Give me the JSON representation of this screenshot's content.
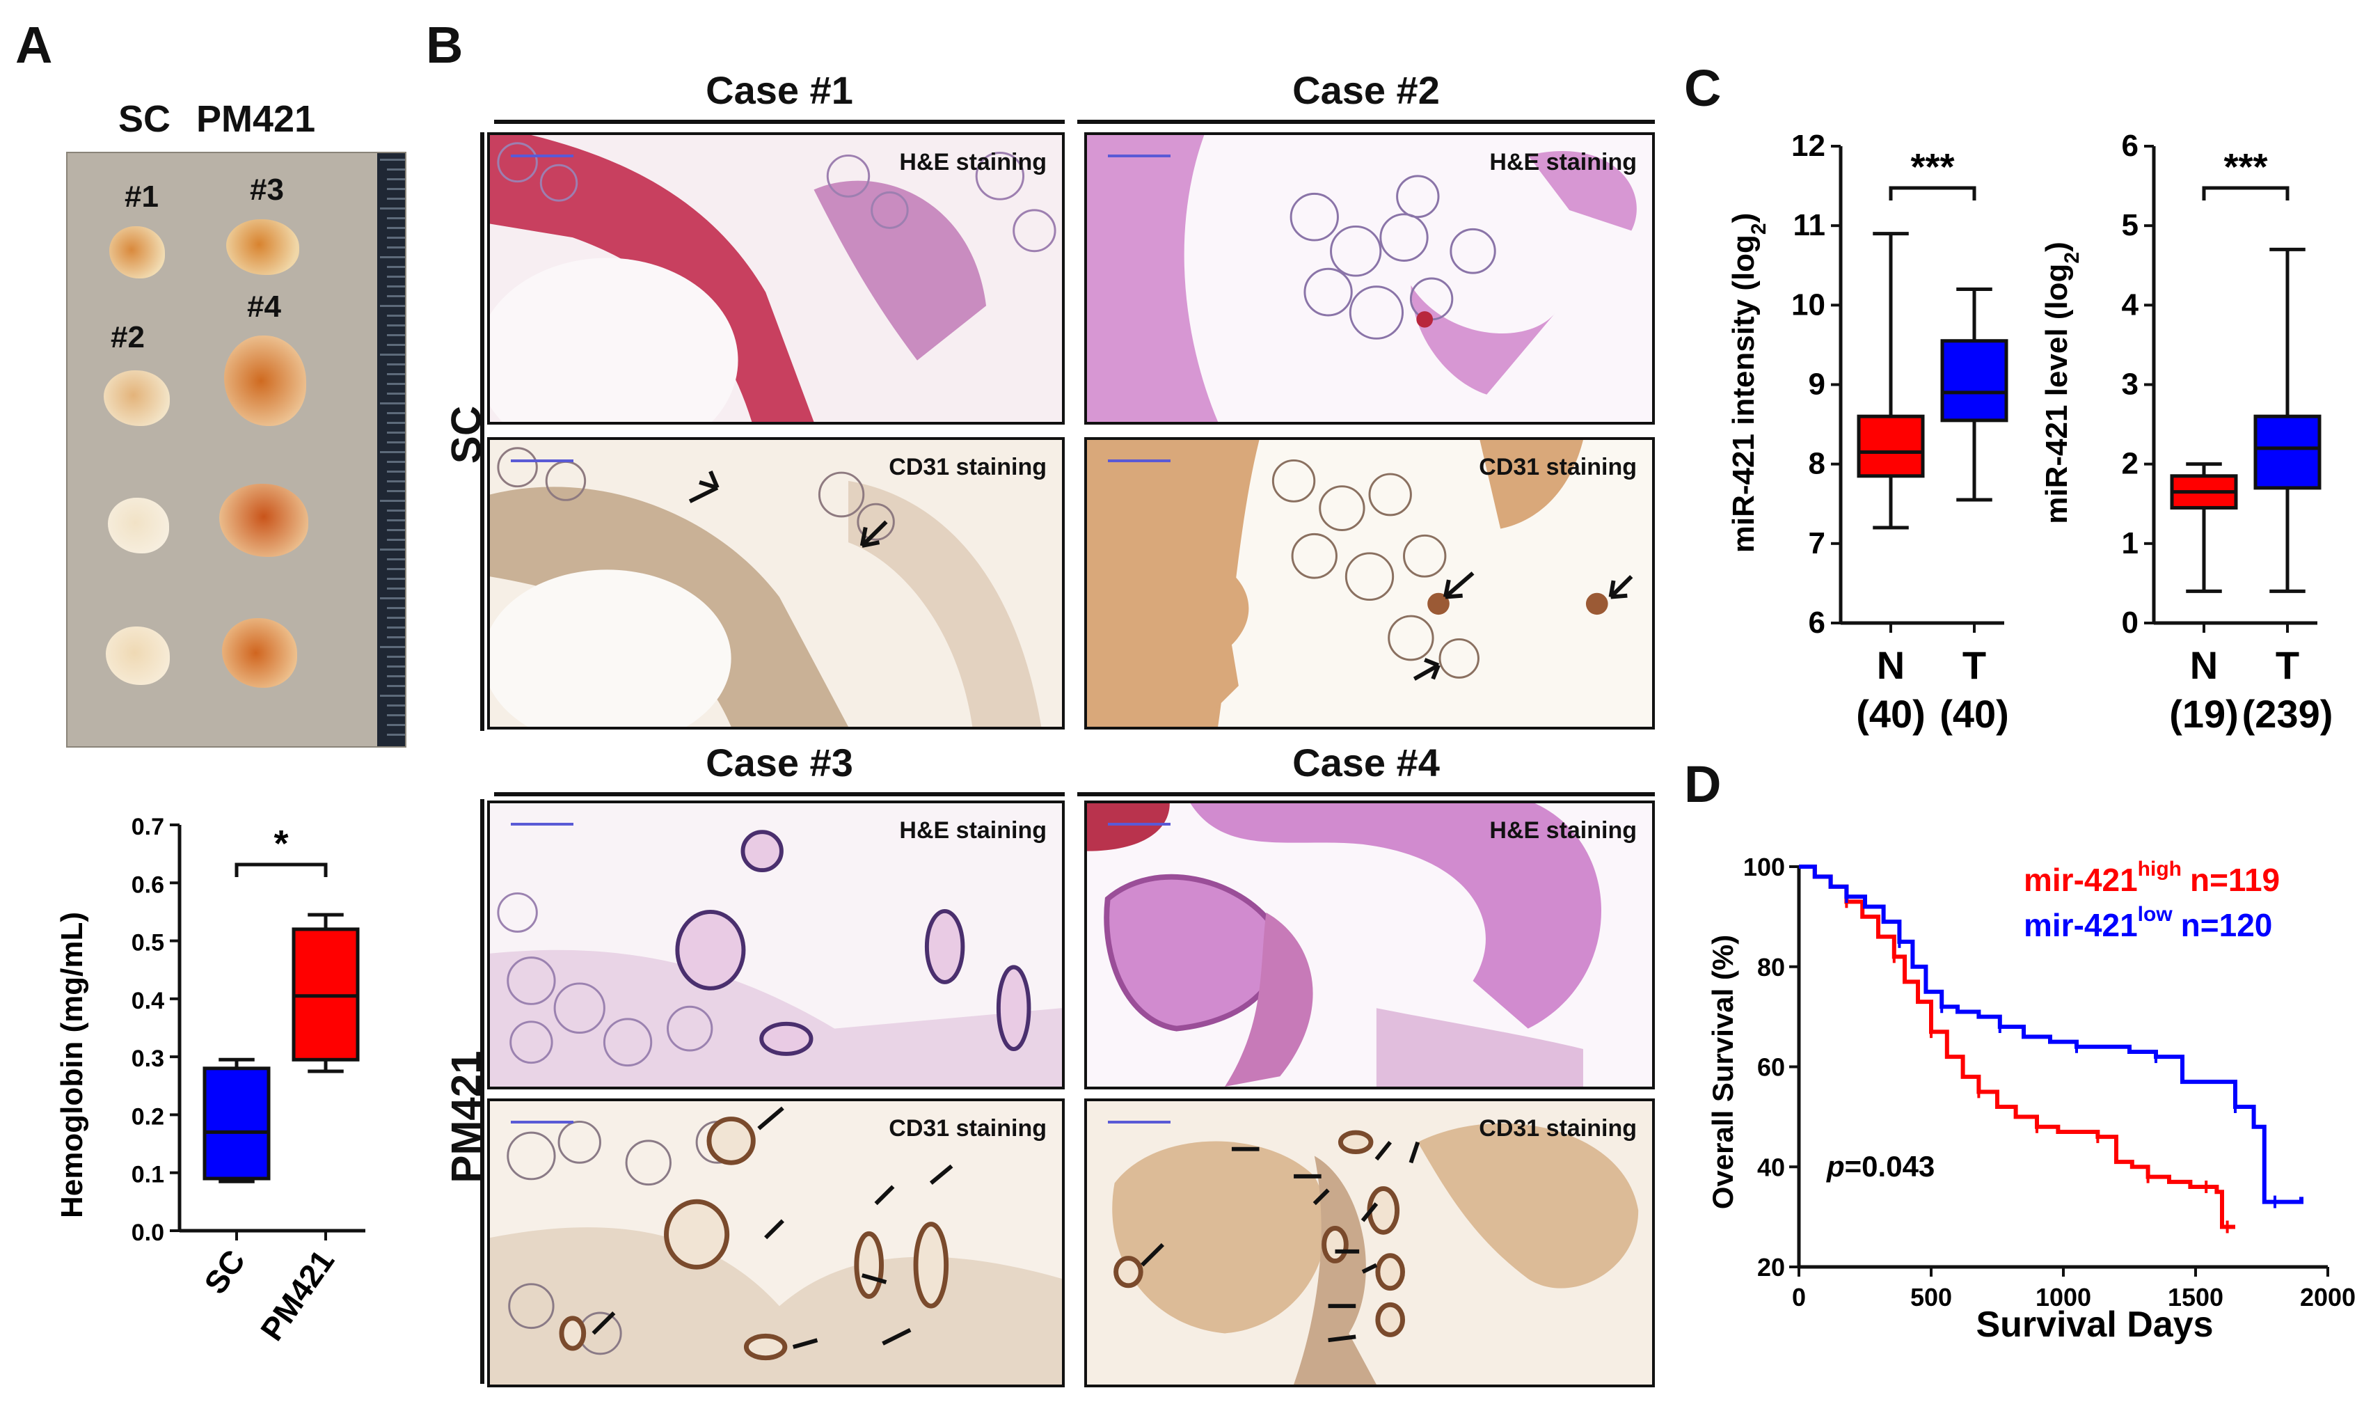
{
  "panel_letters": {
    "a": "A",
    "b": "B",
    "c": "C",
    "d": "D"
  },
  "panel_a": {
    "photo_headers": {
      "sc": "SC",
      "pm421": "PM421"
    },
    "tumor_labels": [
      "#1",
      "#3",
      "#2",
      "#4"
    ]
  },
  "panel_b": {
    "case_titles": [
      "Case #1",
      "Case #2",
      "Case #3",
      "Case #4"
    ],
    "row_labels": {
      "sc": "SC",
      "pm421": "PM421"
    },
    "stain_he": "H&E staining",
    "stain_cd31": "CD31 staining"
  },
  "chart_data": [
    {
      "panel": "A",
      "type": "box",
      "ylabel": "Hemoglobin (mg/mL)",
      "categories": [
        "SC",
        "PM421"
      ],
      "ylim": [
        0,
        0.7
      ],
      "yticks": [
        "0.0",
        "0.1",
        "0.2",
        "0.3",
        "0.4",
        "0.5",
        "0.6",
        "0.7"
      ],
      "boxes": [
        {
          "name": "SC",
          "color": "#0000ff",
          "min": 0.085,
          "q1": 0.09,
          "median": 0.17,
          "q3": 0.28,
          "max": 0.295
        },
        {
          "name": "PM421",
          "color": "#ff0000",
          "min": 0.275,
          "q1": 0.295,
          "median": 0.405,
          "q3": 0.52,
          "max": 0.545
        }
      ],
      "significance": "*"
    },
    {
      "panel": "C",
      "type": "box",
      "ylabel": "miR-421 intensity (log",
      "ylabel_sub": "2",
      "ylabel_end": ")",
      "categories": [
        "N",
        "T"
      ],
      "counts": [
        "(40)",
        "(40)"
      ],
      "ylim": [
        6,
        12
      ],
      "yticks": [
        "6",
        "7",
        "8",
        "9",
        "10",
        "11",
        "12"
      ],
      "boxes": [
        {
          "name": "N",
          "color": "#ff0000",
          "min": 7.2,
          "q1": 7.85,
          "median": 8.15,
          "q3": 8.6,
          "max": 10.9
        },
        {
          "name": "T",
          "color": "#0000ff",
          "min": 7.55,
          "q1": 8.55,
          "median": 8.9,
          "q3": 9.55,
          "max": 10.2
        }
      ],
      "significance": "***"
    },
    {
      "panel": "C",
      "type": "box",
      "ylabel": "miR-421 level (log",
      "ylabel_sub": "2",
      "ylabel_end": ")",
      "categories": [
        "N",
        "T"
      ],
      "counts": [
        "(19)",
        "(239)"
      ],
      "ylim": [
        0,
        6
      ],
      "yticks": [
        "0",
        "1",
        "2",
        "3",
        "4",
        "5",
        "6"
      ],
      "boxes": [
        {
          "name": "N",
          "color": "#ff0000",
          "min": 0.4,
          "q1": 1.45,
          "median": 1.65,
          "q3": 1.85,
          "max": 2.0
        },
        {
          "name": "T",
          "color": "#0000ff",
          "min": 0.4,
          "q1": 1.7,
          "median": 2.2,
          "q3": 2.6,
          "max": 4.7
        }
      ],
      "significance": "***"
    },
    {
      "panel": "D",
      "type": "line",
      "xlabel": "Survival Days",
      "ylabel": "Overall Survival (%)",
      "xlim": [
        0,
        2000
      ],
      "ylim": [
        20,
        100
      ],
      "xticks": [
        "0",
        "500",
        "1000",
        "1500",
        "2000"
      ],
      "yticks": [
        "20",
        "40",
        "60",
        "80",
        "100"
      ],
      "annotation": {
        "p_label": "p",
        "p_value": "=0.043"
      },
      "series": [
        {
          "name_main": "mir-421",
          "name_sup": "high",
          "n_label": "n=119",
          "color": "#ff0000",
          "x": [
            0,
            60,
            120,
            180,
            240,
            300,
            360,
            400,
            450,
            500,
            560,
            620,
            680,
            750,
            820,
            900,
            980,
            1050,
            1130,
            1200,
            1260,
            1320,
            1400,
            1480,
            1540,
            1580,
            1600,
            1620,
            1650
          ],
          "y": [
            100,
            98,
            96,
            93,
            90,
            86,
            82,
            77,
            73,
            67,
            62,
            58,
            55,
            52,
            50,
            48,
            47,
            47,
            46,
            41,
            40,
            38,
            37,
            36,
            36,
            35,
            28,
            28,
            28
          ]
        },
        {
          "name_main": "mir-421",
          "name_sup": "low",
          "n_label": "n=120",
          "color": "#0000ff",
          "x": [
            0,
            60,
            120,
            180,
            250,
            320,
            380,
            430,
            480,
            540,
            600,
            680,
            760,
            850,
            950,
            1050,
            1150,
            1250,
            1350,
            1450,
            1550,
            1650,
            1720,
            1760,
            1800,
            1900
          ],
          "y": [
            100,
            98,
            96,
            94,
            92,
            89,
            85,
            80,
            75,
            72,
            71,
            70,
            68,
            66,
            65,
            64,
            64,
            63,
            62,
            57,
            57,
            52,
            48,
            33,
            33,
            34
          ]
        }
      ]
    }
  ]
}
